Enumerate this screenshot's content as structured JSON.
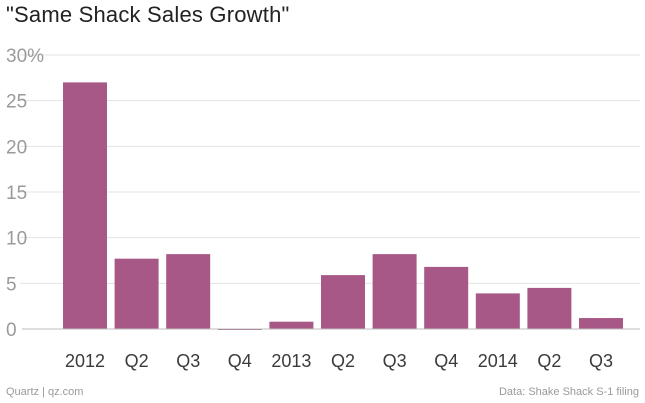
{
  "title": "\"Same Shack Sales Growth\"",
  "footer": {
    "source": "Quartz | qz.com",
    "data_credit": "Data: Shake Shack S-1 filing"
  },
  "colors": {
    "bar": "#a85887",
    "grid": "#e3e3e3",
    "axis": "#bdbdbd",
    "tick_text": "#9a9a9a",
    "x_tick_text": "#3b3b3b"
  },
  "chart_data": {
    "type": "bar",
    "title": "\"Same Shack Sales Growth\"",
    "xlabel": "",
    "ylabel": "",
    "categories": [
      "2012",
      "Q2",
      "Q3",
      "Q4",
      "2013",
      "Q2",
      "Q3",
      "Q4",
      "2014",
      "Q2",
      "Q3"
    ],
    "values": [
      27.0,
      7.7,
      8.2,
      -0.1,
      0.8,
      5.9,
      8.2,
      6.8,
      3.9,
      4.5,
      1.2
    ],
    "ylim": [
      0,
      30
    ],
    "yticks": [
      0,
      5,
      10,
      15,
      20,
      25,
      30
    ],
    "ytick_labels": [
      "0",
      "5",
      "10",
      "15",
      "20",
      "25",
      "30%"
    ],
    "grid": true,
    "legend": "none"
  }
}
